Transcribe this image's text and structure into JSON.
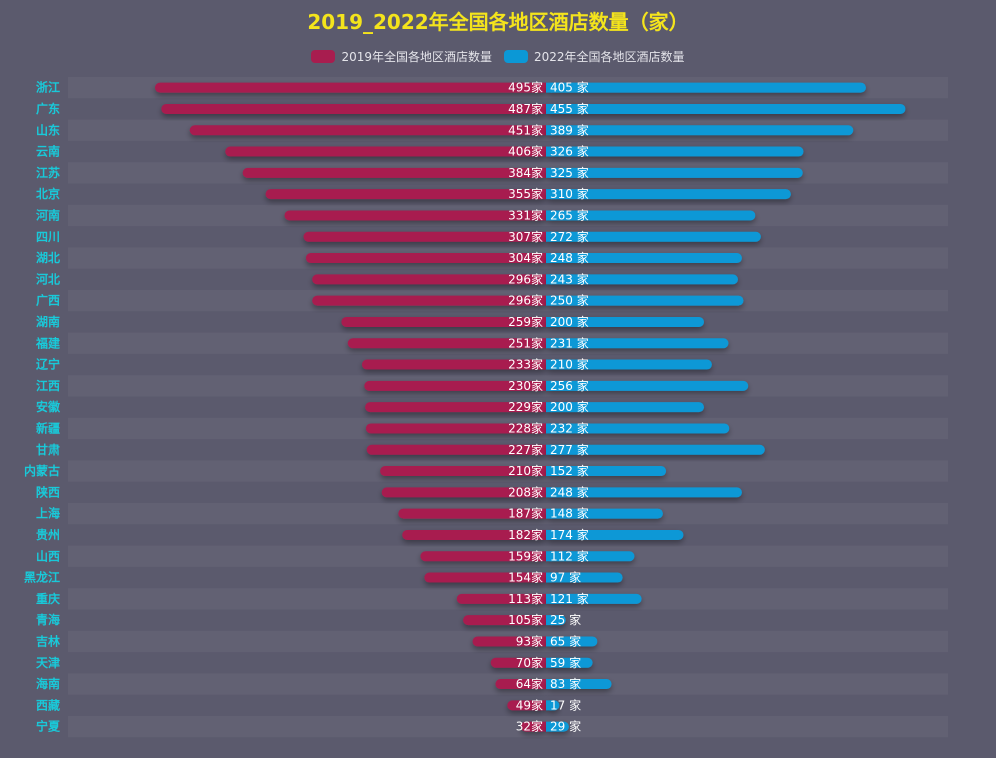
{
  "chart_data": {
    "type": "bar",
    "title": "2019_2022年全国各地区酒店数量（家）",
    "categories": [
      "浙江",
      "广东",
      "山东",
      "云南",
      "江苏",
      "北京",
      "河南",
      "四川",
      "湖北",
      "河北",
      "广西",
      "湖南",
      "福建",
      "辽宁",
      "江西",
      "安徽",
      "新疆",
      "甘肃",
      "内蒙古",
      "陕西",
      "上海",
      "贵州",
      "山西",
      "黑龙江",
      "重庆",
      "青海",
      "吉林",
      "天津",
      "海南",
      "西藏",
      "宁夏"
    ],
    "series": [
      {
        "name": "2019年全国各地区酒店数量",
        "color": "#a81d4f",
        "label_suffix": "家",
        "values": [
          495,
          487,
          451,
          406,
          384,
          355,
          331,
          307,
          304,
          296,
          296,
          259,
          251,
          233,
          230,
          229,
          228,
          227,
          210,
          208,
          187,
          182,
          159,
          154,
          113,
          105,
          93,
          70,
          64,
          49,
          32
        ]
      },
      {
        "name": "2022年全国各地区酒店数量",
        "color": "#0b98d6",
        "label_suffix": " 家",
        "values": [
          405,
          455,
          389,
          326,
          325,
          310,
          265,
          272,
          248,
          243,
          250,
          200,
          231,
          210,
          256,
          200,
          232,
          277,
          152,
          248,
          148,
          174,
          112,
          97,
          121,
          25,
          65,
          59,
          83,
          17,
          29
        ]
      }
    ],
    "orientation": "horizontal-butterfly",
    "legend_position": "top-center",
    "xlim": [
      0,
      500
    ],
    "grid": false
  },
  "colors": {
    "background": "#5b5a6d",
    "title": "#f4e41c",
    "category_label": "#19c9d9",
    "value_label": "#ffffff"
  }
}
